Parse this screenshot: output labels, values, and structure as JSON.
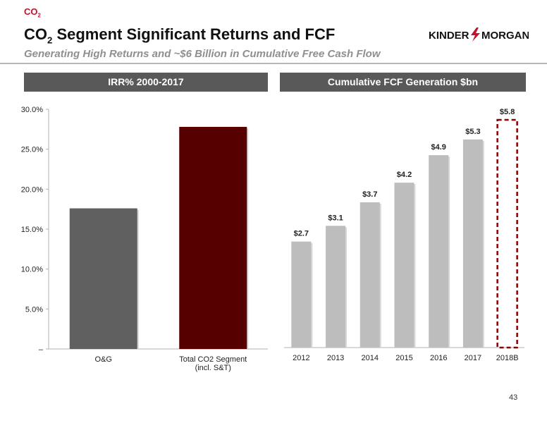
{
  "header": {
    "tag_main": "CO",
    "tag_sub": "2",
    "title_part1": "CO",
    "title_sub": "2",
    "title_part2": " Segment Significant Returns and FCF",
    "subtitle": "Generating High Returns and ~$6 Billion in Cumulative Free Cash Flow",
    "logo_text_left": "KINDER",
    "logo_text_right": "MORGAN"
  },
  "page_number": "43",
  "colors": {
    "accent_red": "#c8102e",
    "panel_header": "#595959",
    "bar_dark_gray": "#606060",
    "bar_maroon": "#560000",
    "bar_light_gray": "#bdbdbd",
    "dashed_box": "#8b0000"
  },
  "chart_data": [
    {
      "type": "bar",
      "title": "IRR% 2000-2017",
      "categories": [
        "O&G",
        "Total CO2 Segment\n(incl. S&T)"
      ],
      "values": [
        17.6,
        27.8
      ],
      "bar_colors": [
        "#606060",
        "#560000"
      ],
      "ylim": [
        0,
        30
      ],
      "yticks": [
        0,
        5,
        10,
        15,
        20,
        25,
        30
      ],
      "ytick_labels": [
        "–",
        "5.0%",
        "10.0%",
        "15.0%",
        "20.0%",
        "25.0%",
        "30.0%"
      ],
      "grid": false,
      "legend": "none"
    },
    {
      "type": "bar",
      "title": "Cumulative FCF Generation $bn",
      "categories": [
        "2012",
        "2013",
        "2014",
        "2015",
        "2016",
        "2017",
        "2018B"
      ],
      "values": [
        2.7,
        3.1,
        3.7,
        4.2,
        4.9,
        5.3,
        5.8
      ],
      "data_labels": [
        "$2.7",
        "$3.1",
        "$3.7",
        "$4.2",
        "$4.9",
        "$5.3",
        "$5.8"
      ],
      "highlighted_category": "2018B",
      "ylim": [
        0,
        6.5
      ],
      "grid": false,
      "legend": "none"
    }
  ]
}
